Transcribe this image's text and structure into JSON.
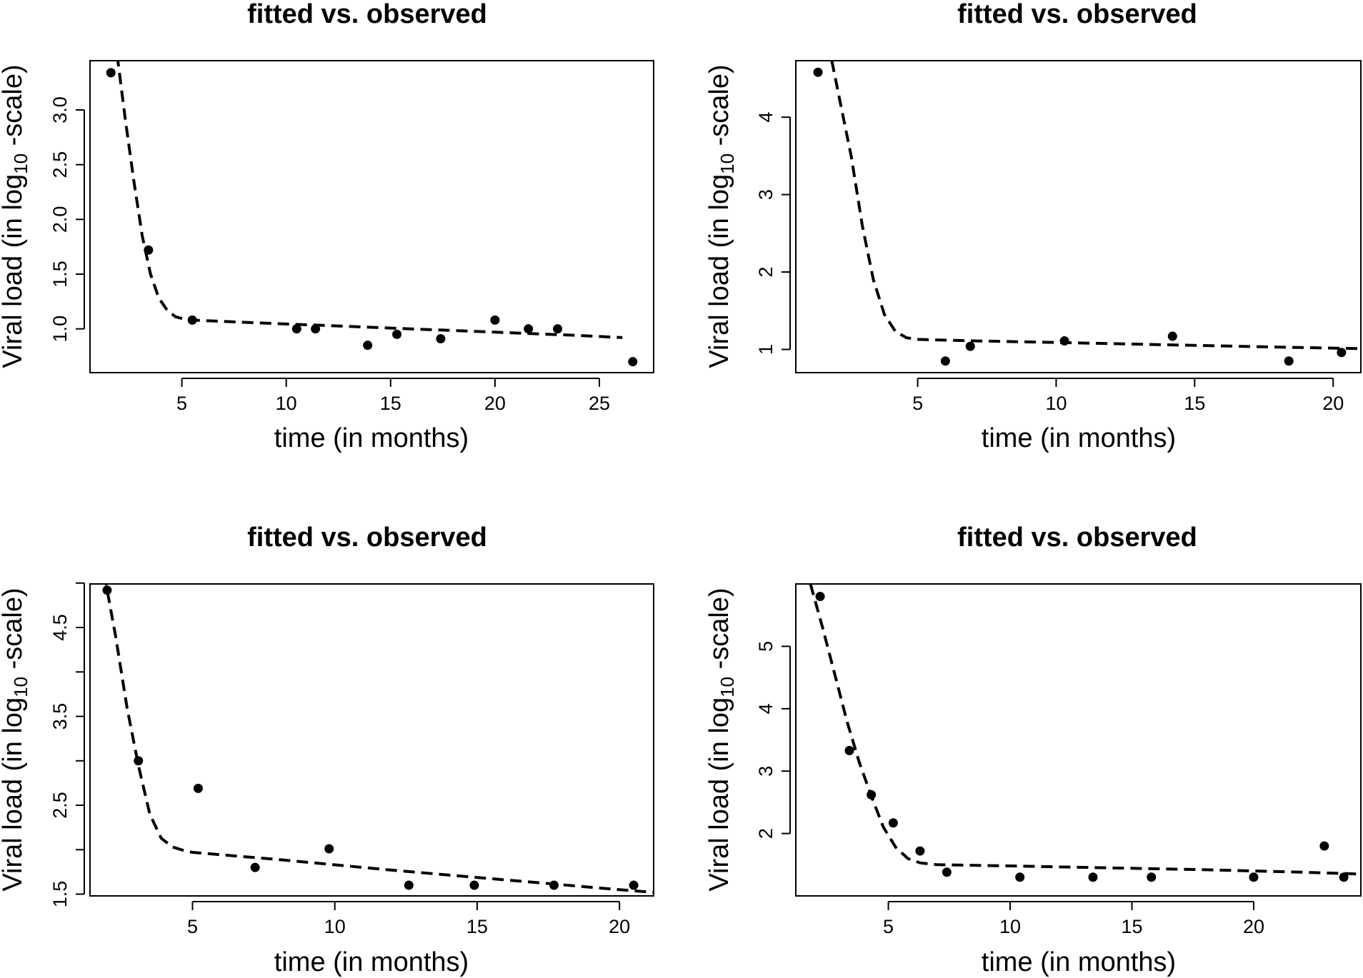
{
  "chart_data": [
    {
      "type": "scatter",
      "title": "fitted vs. observed",
      "xlabel": "time (in months)",
      "ylabel": {
        "pre": "Viral load (in log",
        "sub": "10",
        "post": " -scale)"
      },
      "xlim": [
        0.6,
        27.6
      ],
      "ylim": [
        0.6,
        3.45
      ],
      "xticks": [
        5,
        10,
        15,
        20,
        25
      ],
      "yticks": [
        1.0,
        1.5,
        2.0,
        2.5,
        3.0
      ],
      "ytick_labels": [
        "1.0",
        "1.5",
        "2.0",
        "2.5",
        "3.0"
      ],
      "observed": {
        "x": [
          1.6,
          3.4,
          5.5,
          10.5,
          11.4,
          13.9,
          15.3,
          17.4,
          20.0,
          21.6,
          23.0,
          26.6
        ],
        "y": [
          3.34,
          1.72,
          1.08,
          1.0,
          1.0,
          0.85,
          0.95,
          0.91,
          1.08,
          1.0,
          1.0,
          0.7
        ]
      },
      "fitted": {
        "x": [
          1.9,
          2.3,
          2.7,
          3.1,
          3.5,
          3.9,
          4.3,
          4.7,
          5.1,
          5.5,
          8,
          12,
          16,
          20,
          24,
          26.1
        ],
        "y": [
          3.5,
          2.9,
          2.35,
          1.85,
          1.5,
          1.28,
          1.17,
          1.11,
          1.09,
          1.08,
          1.06,
          1.03,
          1.0,
          0.97,
          0.94,
          0.92
        ]
      }
    },
    {
      "type": "scatter",
      "title": "fitted vs. observed",
      "xlabel": "time (in months)",
      "ylabel": {
        "pre": "Viral load (in log",
        "sub": "10",
        "post": " -scale)"
      },
      "xlim": [
        0.6,
        21.0
      ],
      "ylim": [
        0.7,
        4.73
      ],
      "xticks": [
        5,
        10,
        15,
        20
      ],
      "yticks": [
        1,
        2,
        3,
        4
      ],
      "ytick_labels": [
        "1",
        "2",
        "3",
        "4"
      ],
      "observed": {
        "x": [
          1.4,
          6.0,
          6.9,
          10.3,
          14.2,
          18.4,
          20.3
        ],
        "y": [
          4.58,
          0.85,
          1.04,
          1.11,
          1.17,
          0.85,
          0.96
        ]
      },
      "fitted": {
        "x": [
          1.9,
          2.2,
          2.6,
          3.0,
          3.4,
          3.8,
          4.2,
          4.6,
          5.0,
          7,
          10,
          14,
          18,
          21.0
        ],
        "y": [
          4.73,
          4.2,
          3.5,
          2.6,
          1.9,
          1.45,
          1.23,
          1.15,
          1.13,
          1.11,
          1.09,
          1.06,
          1.03,
          1.01
        ]
      }
    },
    {
      "type": "scatter",
      "title": "fitted vs. observed",
      "xlabel": "time (in months)",
      "ylabel": {
        "pre": "Viral load (in log",
        "sub": "10",
        "post": " -scale)"
      },
      "xlim": [
        1.4,
        21.2
      ],
      "ylim": [
        1.48,
        4.99
      ],
      "xticks": [
        5,
        10,
        15,
        20
      ],
      "yticks": [
        1.5,
        2.0,
        2.5,
        3.0,
        3.5,
        4.0,
        4.5,
        5.0
      ],
      "ytick_labels": [
        "1.5",
        "",
        "2.5",
        "",
        "3.5",
        "",
        "4.5",
        ""
      ],
      "observed": {
        "x": [
          2.0,
          3.1,
          5.2,
          7.2,
          9.8,
          12.6,
          14.9,
          17.7,
          20.5
        ],
        "y": [
          4.92,
          3.0,
          2.69,
          1.8,
          2.01,
          1.6,
          1.6,
          1.6,
          1.6
        ]
      },
      "fitted": {
        "x": [
          1.9,
          2.3,
          2.7,
          3.1,
          3.5,
          3.9,
          4.3,
          4.7,
          5.0,
          8,
          12,
          16,
          20,
          21.2
        ],
        "y": [
          5.1,
          4.4,
          3.6,
          2.95,
          2.4,
          2.13,
          2.03,
          1.99,
          1.97,
          1.89,
          1.77,
          1.66,
          1.55,
          1.52
        ]
      }
    },
    {
      "type": "scatter",
      "title": "fitted vs. observed",
      "xlabel": "time (in months)",
      "ylabel": {
        "pre": "Viral load (in log",
        "sub": "10",
        "post": " -scale)"
      },
      "xlim": [
        1.2,
        24.4
      ],
      "ylim": [
        1.0,
        6.0
      ],
      "xticks": [
        5,
        10,
        15,
        20
      ],
      "yticks": [
        2,
        3,
        4,
        5
      ],
      "ytick_labels": [
        "2",
        "3",
        "4",
        "5"
      ],
      "observed": {
        "x": [
          2.2,
          3.4,
          4.3,
          5.2,
          6.3,
          7.4,
          10.4,
          13.4,
          15.8,
          20.0,
          22.9,
          23.7
        ],
        "y": [
          5.8,
          3.33,
          2.62,
          2.17,
          1.72,
          1.38,
          1.3,
          1.3,
          1.3,
          1.3,
          1.8,
          1.3
        ]
      },
      "fitted": {
        "x": [
          1.8,
          2.3,
          2.8,
          3.3,
          3.8,
          4.3,
          4.8,
          5.3,
          5.8,
          6.3,
          7.0,
          10,
          14,
          18,
          22,
          24.4
        ],
        "y": [
          6.0,
          5.3,
          4.55,
          3.8,
          3.15,
          2.6,
          2.1,
          1.78,
          1.6,
          1.53,
          1.5,
          1.48,
          1.45,
          1.42,
          1.38,
          1.35
        ]
      }
    }
  ]
}
